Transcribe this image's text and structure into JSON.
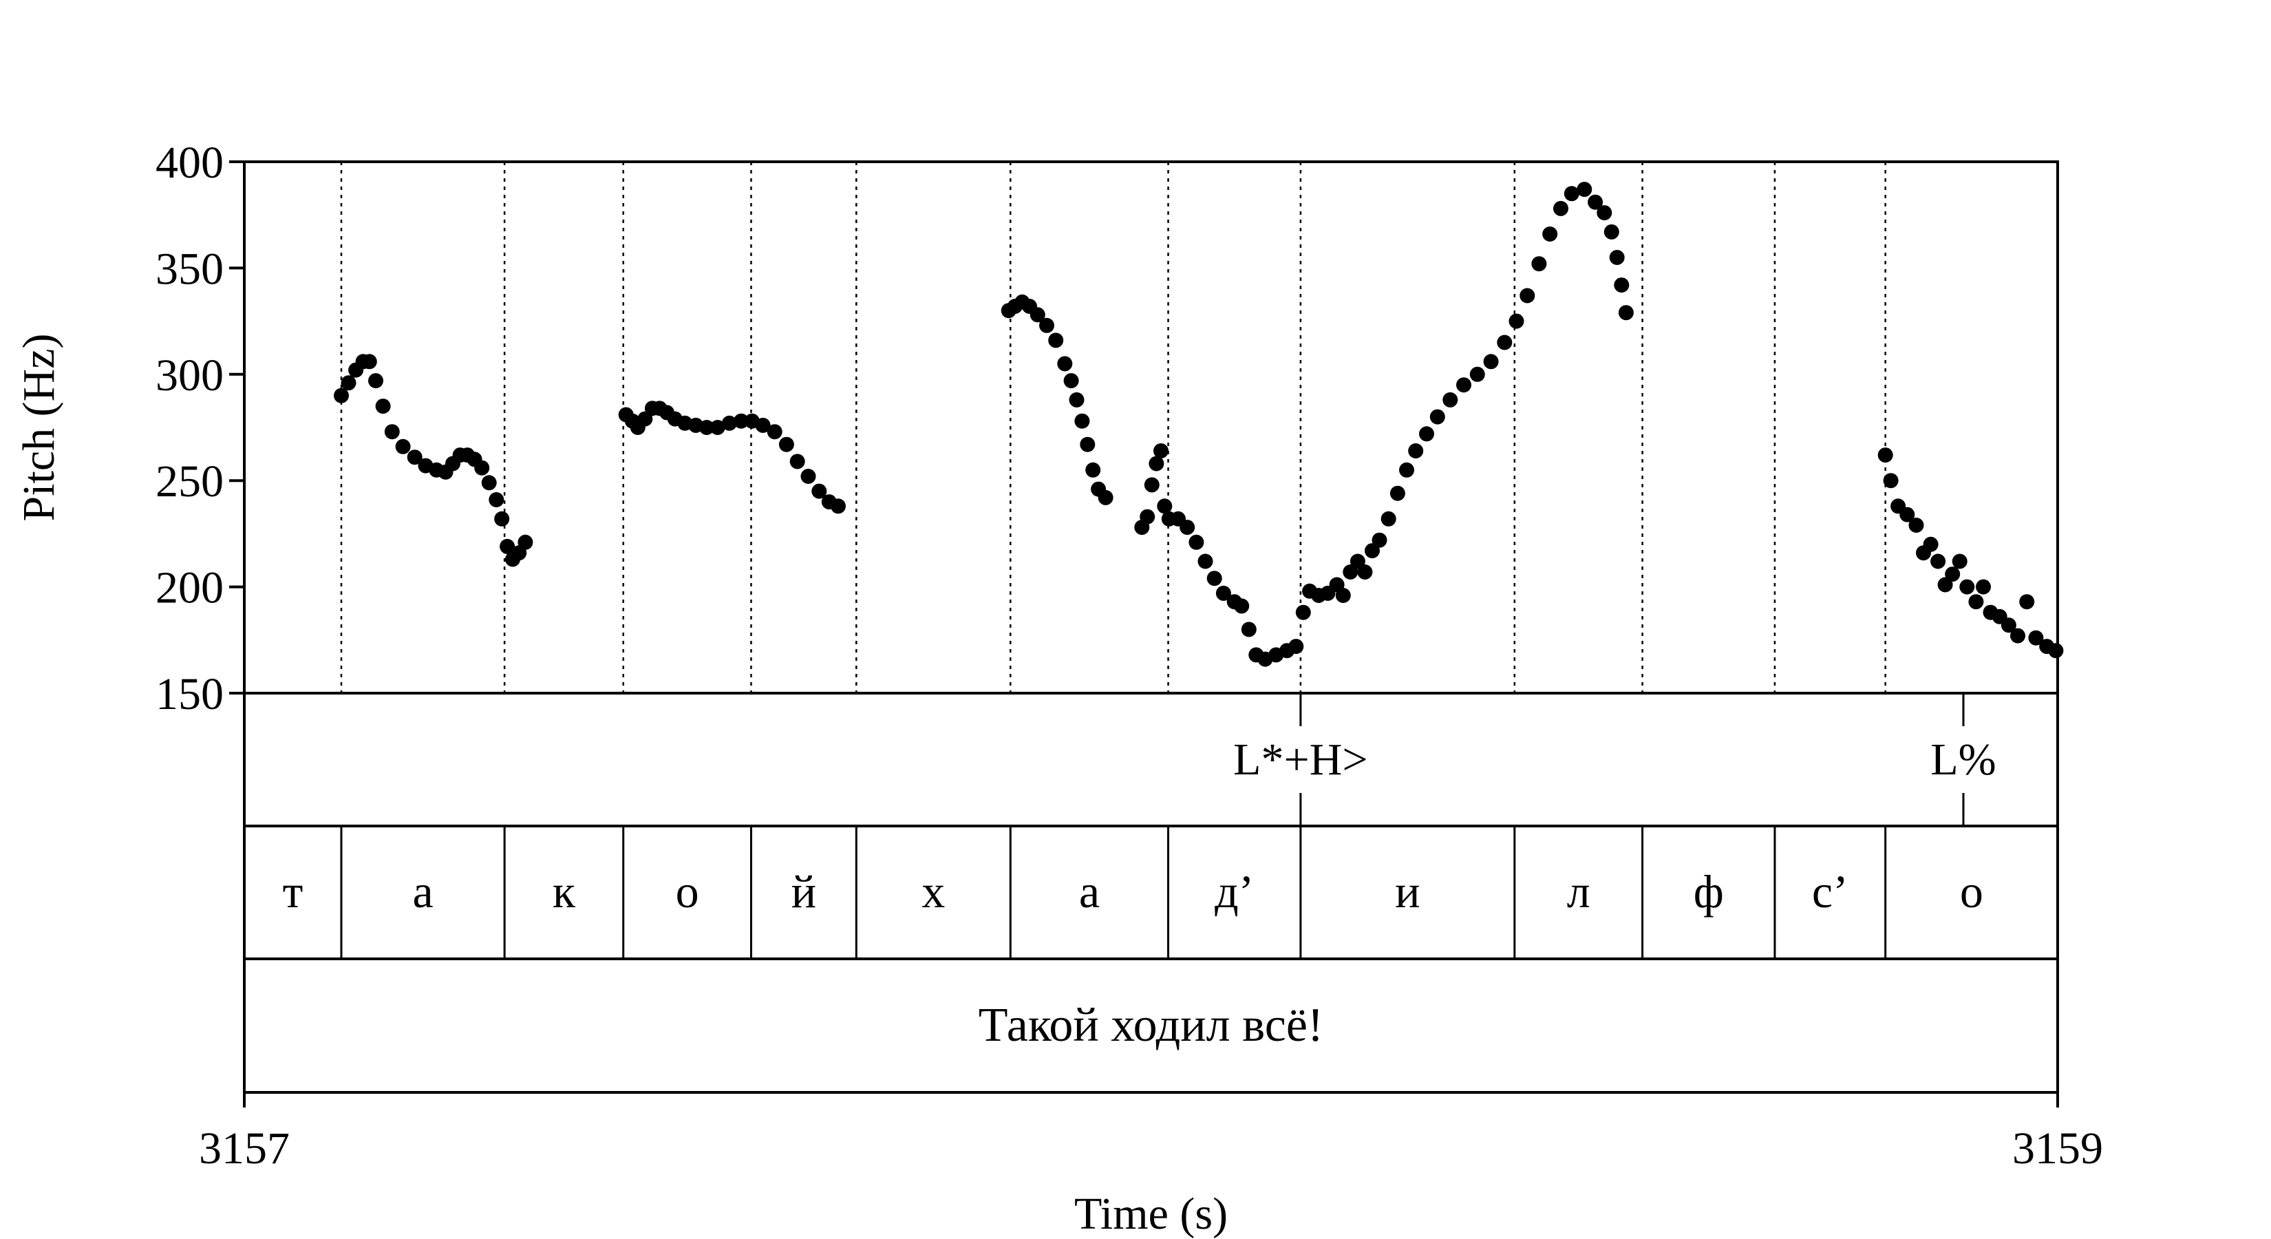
{
  "chart_data": {
    "type": "scatter",
    "xlabel": "Time (s)",
    "ylabel": "Pitch (Hz)",
    "xlim": [
      3157,
      3159
    ],
    "ylim": [
      150,
      400
    ],
    "x_ticks": [
      "3157",
      "3159"
    ],
    "y_ticks": [
      "400",
      "350",
      "300",
      "250",
      "200",
      "150"
    ],
    "grid": "vertical dotted lines at segment boundaries",
    "tone_tier": [
      {
        "time": 3158.165,
        "label": "L*+H>"
      },
      {
        "time": 3158.896,
        "label": "L%"
      }
    ],
    "segment_tier": [
      {
        "start": 3157.0,
        "end": 3157.107,
        "label": "т"
      },
      {
        "start": 3157.107,
        "end": 3157.287,
        "label": "а"
      },
      {
        "start": 3157.287,
        "end": 3157.418,
        "label": "к"
      },
      {
        "start": 3157.418,
        "end": 3157.559,
        "label": "о"
      },
      {
        "start": 3157.559,
        "end": 3157.675,
        "label": "й"
      },
      {
        "start": 3157.675,
        "end": 3157.845,
        "label": "х"
      },
      {
        "start": 3157.845,
        "end": 3158.019,
        "label": "а"
      },
      {
        "start": 3158.019,
        "end": 3158.165,
        "label": "д’"
      },
      {
        "start": 3158.165,
        "end": 3158.401,
        "label": "и"
      },
      {
        "start": 3158.401,
        "end": 3158.542,
        "label": "л"
      },
      {
        "start": 3158.542,
        "end": 3158.688,
        "label": "ф"
      },
      {
        "start": 3158.688,
        "end": 3158.81,
        "label": "с’"
      },
      {
        "start": 3158.81,
        "end": 3159.0,
        "label": "о"
      }
    ],
    "word_tier": [
      {
        "start": 3157.0,
        "end": 3159.0,
        "label": "Такой ходил всё!"
      }
    ],
    "contours": [
      [
        [
          3157.107,
          290
        ],
        [
          3157.115,
          296
        ],
        [
          3157.123,
          302
        ],
        [
          3157.131,
          306
        ],
        [
          3157.138,
          306
        ],
        [
          3157.145,
          297
        ],
        [
          3157.153,
          285
        ],
        [
          3157.163,
          273
        ],
        [
          3157.175,
          266
        ],
        [
          3157.188,
          261
        ],
        [
          3157.2,
          257
        ],
        [
          3157.212,
          255
        ],
        [
          3157.222,
          254
        ],
        [
          3157.23,
          258
        ],
        [
          3157.238,
          262
        ],
        [
          3157.246,
          262
        ],
        [
          3157.254,
          260
        ],
        [
          3157.262,
          256
        ],
        [
          3157.27,
          249
        ],
        [
          3157.278,
          241
        ],
        [
          3157.284,
          232
        ],
        [
          3157.29,
          219
        ],
        [
          3157.296,
          213
        ],
        [
          3157.303,
          216
        ],
        [
          3157.31,
          221
        ]
      ],
      [
        [
          3157.421,
          281
        ],
        [
          3157.428,
          278
        ],
        [
          3157.434,
          275
        ],
        [
          3157.442,
          279
        ],
        [
          3157.45,
          284
        ],
        [
          3157.458,
          284
        ],
        [
          3157.466,
          282
        ],
        [
          3157.475,
          279
        ],
        [
          3157.486,
          277
        ],
        [
          3157.498,
          276
        ],
        [
          3157.51,
          275
        ],
        [
          3157.522,
          275
        ],
        [
          3157.535,
          277
        ],
        [
          3157.548,
          278
        ],
        [
          3157.56,
          278
        ],
        [
          3157.572,
          276
        ],
        [
          3157.585,
          273
        ],
        [
          3157.598,
          267
        ],
        [
          3157.61,
          259
        ],
        [
          3157.622,
          252
        ],
        [
          3157.634,
          245
        ],
        [
          3157.645,
          240
        ],
        [
          3157.655,
          238
        ]
      ],
      [
        [
          3157.843,
          330
        ],
        [
          3157.85,
          332
        ],
        [
          3157.858,
          334
        ],
        [
          3157.866,
          332
        ],
        [
          3157.875,
          328
        ],
        [
          3157.885,
          323
        ],
        [
          3157.895,
          316
        ],
        [
          3157.905,
          305
        ],
        [
          3157.912,
          297
        ],
        [
          3157.918,
          288
        ],
        [
          3157.924,
          278
        ],
        [
          3157.93,
          267
        ],
        [
          3157.936,
          255
        ],
        [
          3157.942,
          246
        ],
        [
          3157.95,
          242
        ]
      ],
      [
        [
          3157.99,
          228
        ],
        [
          3157.996,
          233
        ],
        [
          3158.001,
          248
        ],
        [
          3158.006,
          258
        ],
        [
          3158.011,
          264
        ],
        [
          3158.015,
          238
        ],
        [
          3158.02,
          232
        ],
        [
          3158.03,
          232
        ],
        [
          3158.04,
          228
        ],
        [
          3158.05,
          221
        ],
        [
          3158.06,
          212
        ],
        [
          3158.07,
          204
        ],
        [
          3158.08,
          197
        ],
        [
          3158.092,
          193
        ],
        [
          3158.1,
          191
        ],
        [
          3158.108,
          180
        ],
        [
          3158.116,
          168
        ],
        [
          3158.126,
          166
        ],
        [
          3158.138,
          168
        ],
        [
          3158.15,
          170
        ],
        [
          3158.16,
          172
        ]
      ],
      [
        [
          3158.168,
          188
        ],
        [
          3158.175,
          198
        ],
        [
          3158.185,
          196
        ],
        [
          3158.195,
          197
        ],
        [
          3158.205,
          201
        ],
        [
          3158.212,
          196
        ],
        [
          3158.22,
          207
        ],
        [
          3158.228,
          212
        ],
        [
          3158.236,
          207
        ],
        [
          3158.244,
          217
        ],
        [
          3158.252,
          222
        ],
        [
          3158.262,
          232
        ],
        [
          3158.272,
          244
        ],
        [
          3158.282,
          255
        ],
        [
          3158.292,
          264
        ],
        [
          3158.304,
          272
        ],
        [
          3158.316,
          280
        ],
        [
          3158.33,
          288
        ],
        [
          3158.345,
          295
        ],
        [
          3158.36,
          300
        ],
        [
          3158.375,
          306
        ],
        [
          3158.39,
          315
        ],
        [
          3158.403,
          325
        ],
        [
          3158.415,
          337
        ],
        [
          3158.428,
          352
        ],
        [
          3158.44,
          366
        ],
        [
          3158.452,
          378
        ],
        [
          3158.464,
          385
        ],
        [
          3158.478,
          387
        ],
        [
          3158.49,
          381
        ],
        [
          3158.5,
          376
        ],
        [
          3158.508,
          367
        ],
        [
          3158.514,
          355
        ],
        [
          3158.519,
          342
        ],
        [
          3158.524,
          329
        ]
      ],
      [
        [
          3158.81,
          262
        ],
        [
          3158.816,
          250
        ],
        [
          3158.824,
          238
        ],
        [
          3158.834,
          234
        ],
        [
          3158.844,
          229
        ],
        [
          3158.852,
          216
        ],
        [
          3158.86,
          220
        ],
        [
          3158.868,
          212
        ],
        [
          3158.876,
          201
        ],
        [
          3158.884,
          206
        ],
        [
          3158.892,
          212
        ],
        [
          3158.9,
          200
        ],
        [
          3158.91,
          193
        ],
        [
          3158.918,
          200
        ],
        [
          3158.926,
          188
        ],
        [
          3158.936,
          186
        ],
        [
          3158.946,
          182
        ],
        [
          3158.956,
          177
        ],
        [
          3158.966,
          193
        ],
        [
          3158.976,
          176
        ],
        [
          3158.988,
          172
        ],
        [
          3158.998,
          170
        ]
      ]
    ]
  }
}
